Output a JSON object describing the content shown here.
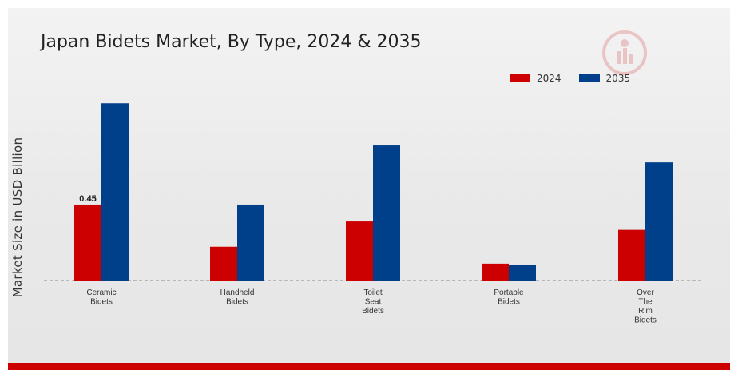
{
  "title": "Japan Bidets Market, By Type, 2024 & 2035",
  "legend": [
    {
      "label": "2024",
      "color": "#cc0000"
    },
    {
      "label": "2035",
      "color": "#003f8a"
    }
  ],
  "chart_data": {
    "type": "bar",
    "title": "Japan Bidets Market, By Type, 2024 & 2035",
    "xlabel": "",
    "ylabel": "Market Size in USD Billion",
    "ylim": [
      0,
      1.25
    ],
    "grid": false,
    "legend_position": "top-right",
    "categories": [
      [
        "Ceramic",
        "Bidets"
      ],
      [
        "Handheld",
        "Bidets"
      ],
      [
        "Toilet",
        "Seat",
        "Bidets"
      ],
      [
        "Portable",
        "Bidets"
      ],
      [
        "Over",
        "The",
        "Rim",
        "Bidets"
      ]
    ],
    "series": [
      {
        "name": "2024",
        "color": "#cc0000",
        "values": [
          0.45,
          0.2,
          0.35,
          0.1,
          0.3
        ]
      },
      {
        "name": "2035",
        "color": "#003f8a",
        "values": [
          1.05,
          0.45,
          0.8,
          0.09,
          0.7
        ]
      }
    ],
    "data_labels": [
      {
        "series": 0,
        "index": 0,
        "text": "0.45"
      }
    ]
  }
}
